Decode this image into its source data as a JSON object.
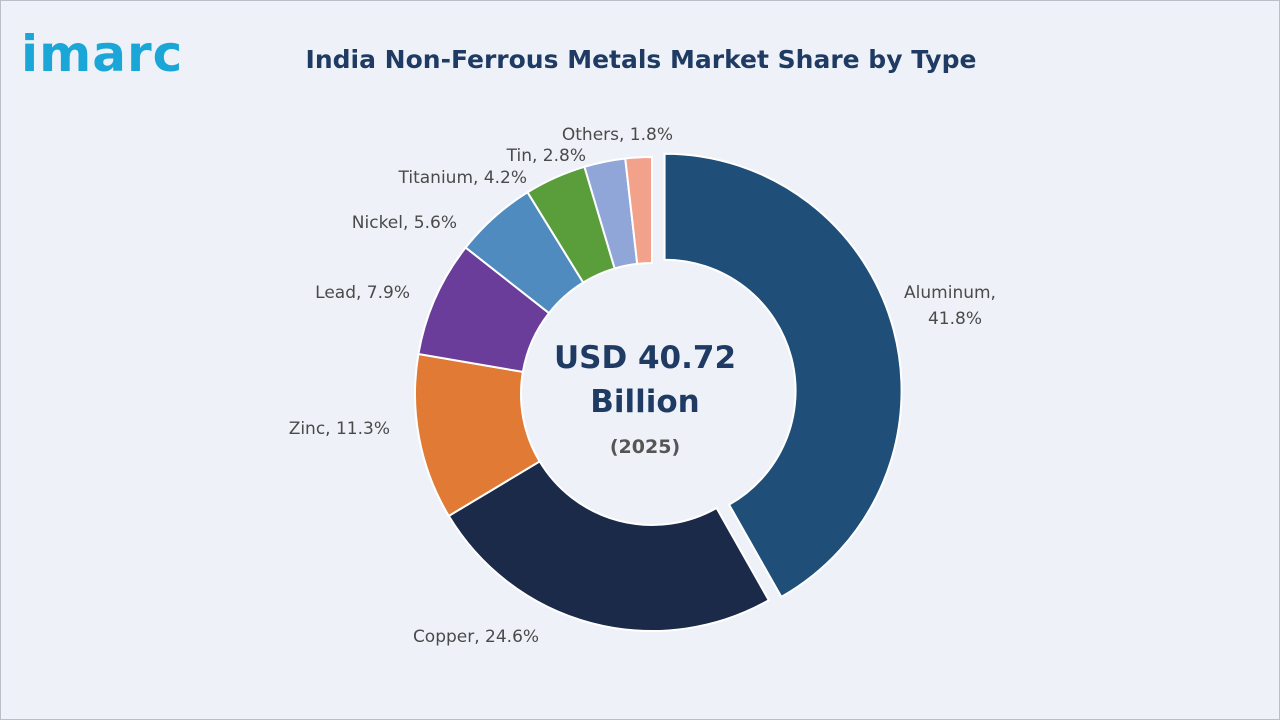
{
  "brand": {
    "logo_text": "imarc"
  },
  "chart_data": {
    "type": "pie",
    "style": "donut",
    "title": "India Non-Ferrous Metals Market Share by Type",
    "center_value": "USD 40.72",
    "center_unit": "Billion",
    "center_year": "(2025)",
    "categories": [
      "Aluminum",
      "Copper",
      "Zinc",
      "Lead",
      "Nickel",
      "Titanium",
      "Tin",
      "Others"
    ],
    "values": [
      41.8,
      24.6,
      11.3,
      7.9,
      5.6,
      4.2,
      2.8,
      1.8
    ],
    "labels": [
      "Aluminum,",
      "Copper, 24.6%",
      "Zinc, 11.3%",
      "Lead, 7.9%",
      "Nickel, 5.6%",
      "Titanium, 4.2%",
      "Tin, 2.8%",
      "Others, 1.8%"
    ],
    "label_aluminum_value": "41.8%",
    "colors": [
      "#1f4e79",
      "#1c2a4a",
      "#e07a35",
      "#6a3d9a",
      "#4f8bbf",
      "#5a9e3c",
      "#91a6d8",
      "#f2a28a"
    ],
    "exploded_slice": "Aluminum",
    "legend": "none"
  }
}
